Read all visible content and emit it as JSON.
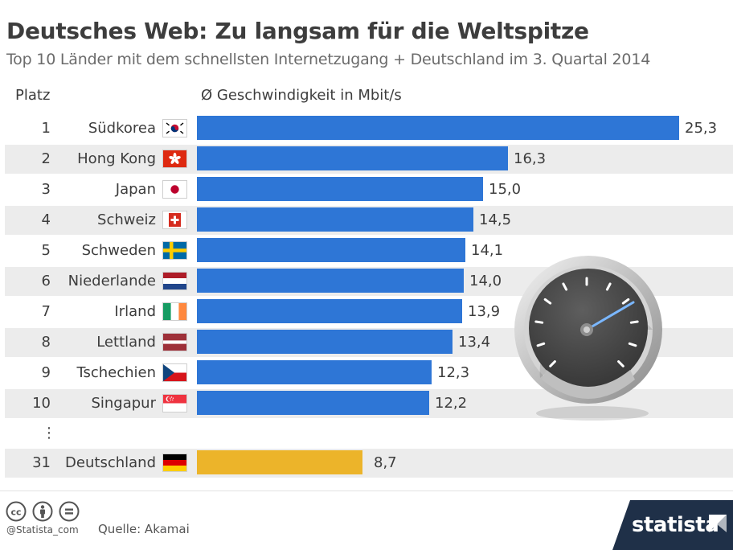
{
  "title": "Deutsches Web: Zu langsam für die Weltspitze",
  "subtitle": "Top 10 Länder mit dem schnellsten Internetzugang + Deutschland im 3. Quartal 2014",
  "columns": {
    "rank": "Platz",
    "speed": "Ø Geschwindigkeit in Mbit/s"
  },
  "ellipsis": "⋮",
  "colors": {
    "bar": "#2e76d6",
    "highlight": "#ecb42a",
    "row_shade": "#ececec",
    "brand_bg": "#1f3048"
  },
  "chart_data": {
    "type": "bar",
    "orientation": "horizontal",
    "title": "Deutsches Web: Zu langsam für die Weltspitze",
    "subtitle": "Top 10 Länder mit dem schnellsten Internetzugang + Deutschland im 3. Quartal 2014",
    "xlabel": "Ø Geschwindigkeit in Mbit/s",
    "xlim": [
      0,
      25.3
    ],
    "rows": [
      {
        "rank": "1",
        "country": "Südkorea",
        "flag": "kr",
        "value": 25.3,
        "label": "25,3",
        "highlight": false
      },
      {
        "rank": "2",
        "country": "Hong Kong",
        "flag": "hk",
        "value": 16.3,
        "label": "16,3",
        "highlight": false
      },
      {
        "rank": "3",
        "country": "Japan",
        "flag": "jp",
        "value": 15.0,
        "label": "15,0",
        "highlight": false
      },
      {
        "rank": "4",
        "country": "Schweiz",
        "flag": "ch",
        "value": 14.5,
        "label": "14,5",
        "highlight": false
      },
      {
        "rank": "5",
        "country": "Schweden",
        "flag": "se",
        "value": 14.1,
        "label": "14,1",
        "highlight": false
      },
      {
        "rank": "6",
        "country": "Niederlande",
        "flag": "nl",
        "value": 14.0,
        "label": "14,0",
        "highlight": false
      },
      {
        "rank": "7",
        "country": "Irland",
        "flag": "ie",
        "value": 13.9,
        "label": "13,9",
        "highlight": false
      },
      {
        "rank": "8",
        "country": "Lettland",
        "flag": "lv",
        "value": 13.4,
        "label": "13,4",
        "highlight": false
      },
      {
        "rank": "9",
        "country": "Tschechien",
        "flag": "cz",
        "value": 12.3,
        "label": "12,3",
        "highlight": false
      },
      {
        "rank": "10",
        "country": "Singapur",
        "flag": "sg",
        "value": 12.2,
        "label": "12,2",
        "highlight": false
      },
      {
        "rank": "31",
        "country": "Deutschland",
        "flag": "de",
        "value": 8.7,
        "label": "8,7",
        "highlight": true
      }
    ]
  },
  "decoration": {
    "gauge_icon": "speedometer-icon"
  },
  "footer": {
    "license_icons": [
      "creative-commons-icon",
      "attribution-icon",
      "no-derivatives-icon"
    ],
    "credit": "@Statista_com",
    "source": "Quelle: Akamai",
    "brand": "statista"
  }
}
